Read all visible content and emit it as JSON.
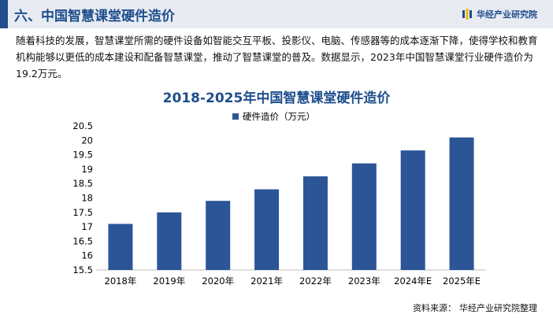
{
  "header": {
    "title": "六、中国智慧课堂硬件造价",
    "brand": "华经产业研究院"
  },
  "intro_text": "随着科技的发展，智慧课堂所需的硬件设备如智能交互平板、投影仪、电脑、传感器等的成本逐渐下降，使得学校和教育机构能够以更低的成本建设和配备智慧课堂，推动了智慧课堂的普及。数据显示，2023年中国智慧课堂行业硬件造价为19.2万元。",
  "chart_data": {
    "type": "bar",
    "title": "2018-2025年中国智慧课堂硬件造价",
    "categories": [
      "2018年",
      "2019年",
      "2020年",
      "2021年",
      "2022年",
      "2023年",
      "2024年E",
      "2025年E"
    ],
    "series": [
      {
        "name": "硬件造价（万元）",
        "values": [
          17.1,
          17.5,
          17.9,
          18.3,
          18.75,
          19.2,
          19.65,
          20.1
        ]
      }
    ],
    "ylim": [
      15.5,
      20.5
    ],
    "yticks": [
      "15.5",
      "16",
      "16.5",
      "17",
      "17.5",
      "18",
      "18.5",
      "19",
      "19.5",
      "20",
      "20.5"
    ],
    "legend_position": "top",
    "grid": false,
    "bar_color": "#2b5597"
  },
  "source": {
    "label": "资料来源：",
    "value": "华经产业研究院整理"
  }
}
